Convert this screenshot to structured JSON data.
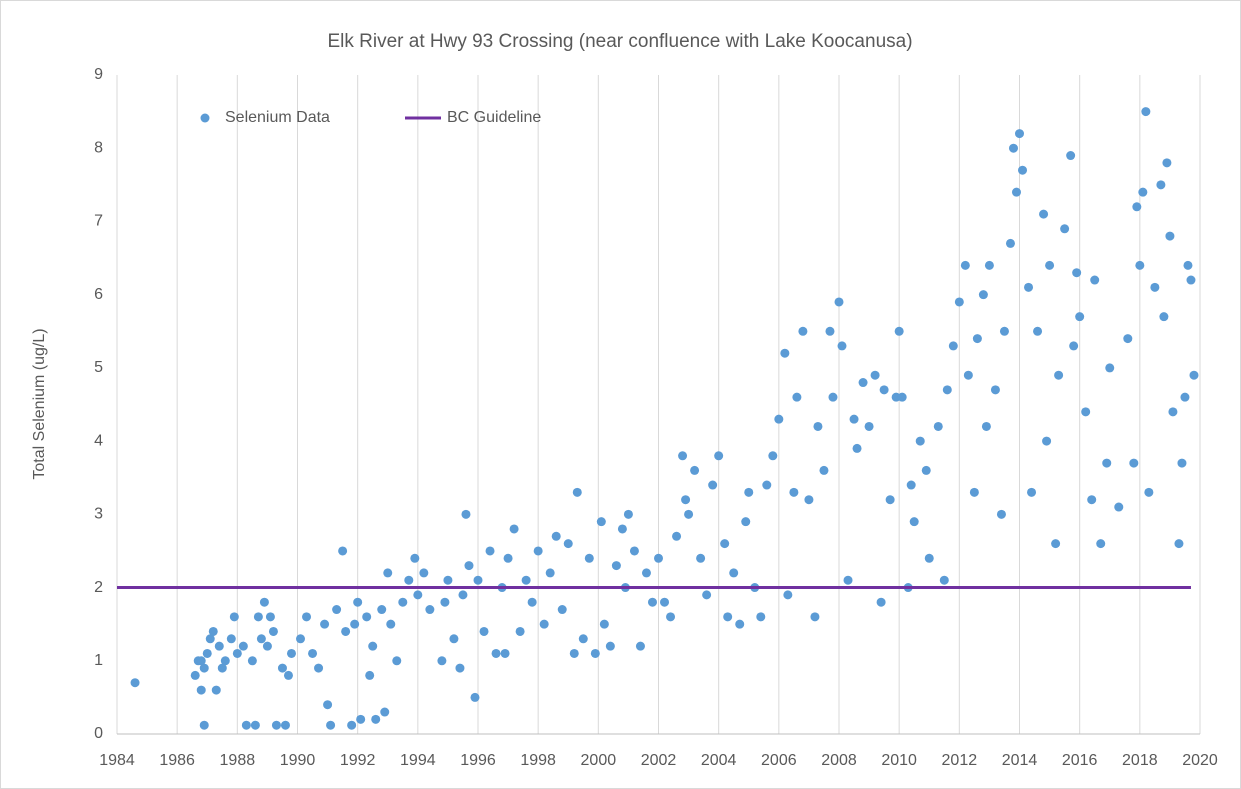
{
  "chart_data": {
    "type": "scatter",
    "title": "Elk River at Hwy 93 Crossing (near confluence with Lake Koocanusa)",
    "y_label": "Total Selenium (ug/L)",
    "xlim": [
      1984,
      2020
    ],
    "xticks": [
      1984,
      1986,
      1988,
      1990,
      1992,
      1994,
      1996,
      1998,
      2000,
      2002,
      2004,
      2006,
      2008,
      2010,
      2012,
      2014,
      2016,
      2018,
      2020
    ],
    "ylim": [
      0,
      9
    ],
    "yticks": [
      0,
      1,
      2,
      3,
      4,
      5,
      6,
      7,
      8,
      9
    ],
    "grid": "x",
    "legend": "upper left",
    "series": [
      {
        "name": "Selenium Data",
        "color": "#5b9bd5",
        "type": "scatter",
        "x": [
          1984.6,
          1986.6,
          1986.7,
          1986.8,
          1986.9,
          1986.9,
          1986.8,
          1987.0,
          1987.1,
          1987.2,
          1987.3,
          1987.4,
          1987.5,
          1987.6,
          1987.8,
          1987.9,
          1988.0,
          1988.2,
          1988.3,
          1988.5,
          1988.6,
          1988.7,
          1988.8,
          1988.9,
          1989.0,
          1989.1,
          1989.2,
          1989.3,
          1989.5,
          1989.6,
          1989.7,
          1989.8,
          1990.1,
          1990.3,
          1990.5,
          1990.7,
          1990.9,
          1991.0,
          1991.1,
          1991.3,
          1991.5,
          1991.6,
          1991.8,
          1991.9,
          1992.0,
          1992.1,
          1992.3,
          1992.4,
          1992.5,
          1992.6,
          1992.8,
          1992.9,
          1993.0,
          1993.1,
          1993.3,
          1993.5,
          1993.7,
          1993.9,
          1994.0,
          1994.2,
          1994.4,
          1994.8,
          1994.9,
          1995.0,
          1995.2,
          1995.4,
          1995.5,
          1995.6,
          1995.7,
          1995.9,
          1996.0,
          1996.2,
          1996.4,
          1996.6,
          1996.8,
          1996.9,
          1997.0,
          1997.2,
          1997.4,
          1997.6,
          1997.8,
          1998.0,
          1998.2,
          1998.4,
          1998.6,
          1998.8,
          1999.0,
          1999.2,
          1999.3,
          1999.5,
          1999.7,
          1999.9,
          2000.1,
          2000.2,
          2000.4,
          2000.6,
          2000.8,
          2000.9,
          2001.0,
          2001.2,
          2001.4,
          2001.6,
          2001.8,
          2002.0,
          2002.2,
          2002.4,
          2002.6,
          2002.8,
          2002.9,
          2003.0,
          2003.2,
          2003.4,
          2003.6,
          2003.8,
          2004.0,
          2004.2,
          2004.3,
          2004.5,
          2004.7,
          2004.9,
          2005.0,
          2005.2,
          2005.4,
          2005.6,
          2005.8,
          2006.0,
          2006.2,
          2006.3,
          2006.5,
          2006.6,
          2006.8,
          2007.0,
          2007.2,
          2007.3,
          2007.5,
          2007.7,
          2007.8,
          2008.0,
          2008.1,
          2008.3,
          2008.5,
          2008.6,
          2008.8,
          2009.0,
          2009.2,
          2009.4,
          2009.5,
          2009.7,
          2009.9,
          2010.0,
          2010.1,
          2010.3,
          2010.4,
          2010.5,
          2010.7,
          2010.9,
          2011.0,
          2011.3,
          2011.5,
          2011.6,
          2011.8,
          2012.0,
          2012.2,
          2012.3,
          2012.5,
          2012.6,
          2012.8,
          2012.9,
          2013.0,
          2013.2,
          2013.4,
          2013.5,
          2013.7,
          2013.8,
          2013.9,
          2014.0,
          2014.1,
          2014.3,
          2014.4,
          2014.6,
          2014.8,
          2014.9,
          2015.0,
          2015.2,
          2015.3,
          2015.5,
          2015.7,
          2015.8,
          2015.9,
          2016.0,
          2016.2,
          2016.4,
          2016.5,
          2016.7,
          2016.9,
          2017.0,
          2017.3,
          2017.6,
          2017.8,
          2017.9,
          2018.0,
          2018.1,
          2018.2,
          2018.3,
          2018.5,
          2018.7,
          2018.8,
          2018.9,
          2019.0,
          2019.1,
          2019.3,
          2019.4,
          2019.5,
          2019.6,
          2019.7,
          2019.8
        ],
        "values": [
          0.7,
          0.8,
          1.0,
          0.6,
          0.12,
          0.9,
          1.0,
          1.1,
          1.3,
          1.4,
          0.6,
          1.2,
          0.9,
          1.0,
          1.3,
          1.6,
          1.1,
          1.2,
          0.12,
          1.0,
          0.12,
          1.6,
          1.3,
          1.8,
          1.2,
          1.6,
          1.4,
          0.12,
          0.9,
          0.12,
          0.8,
          1.1,
          1.3,
          1.6,
          1.1,
          0.9,
          1.5,
          0.4,
          0.12,
          1.7,
          2.5,
          1.4,
          0.12,
          1.5,
          1.8,
          0.2,
          1.6,
          0.8,
          1.2,
          0.2,
          1.7,
          0.3,
          2.2,
          1.5,
          1.0,
          1.8,
          2.1,
          2.4,
          1.9,
          2.2,
          1.7,
          1.0,
          1.8,
          2.1,
          1.3,
          0.9,
          1.9,
          3.0,
          2.3,
          0.5,
          2.1,
          1.4,
          2.5,
          1.1,
          2.0,
          1.1,
          2.4,
          2.8,
          1.4,
          2.1,
          1.8,
          2.5,
          1.5,
          2.2,
          2.7,
          1.7,
          2.6,
          1.1,
          3.3,
          1.3,
          2.4,
          1.1,
          2.9,
          1.5,
          1.2,
          2.3,
          2.8,
          2.0,
          3.0,
          2.5,
          1.2,
          2.2,
          1.8,
          2.4,
          1.8,
          1.6,
          2.7,
          3.8,
          3.2,
          3.0,
          3.6,
          2.4,
          1.9,
          3.4,
          3.8,
          2.6,
          1.6,
          2.2,
          1.5,
          2.9,
          3.3,
          2.0,
          1.6,
          3.4,
          3.8,
          4.3,
          5.2,
          1.9,
          3.3,
          4.6,
          5.5,
          3.2,
          1.6,
          4.2,
          3.6,
          5.5,
          4.6,
          5.9,
          5.3,
          2.1,
          4.3,
          3.9,
          4.8,
          4.2,
          4.9,
          1.8,
          4.7,
          3.2,
          4.6,
          5.5,
          4.6,
          2.0,
          3.4,
          2.9,
          4.0,
          3.6,
          2.4,
          4.2,
          2.1,
          4.7,
          5.3,
          5.9,
          6.4,
          4.9,
          3.3,
          5.4,
          6.0,
          4.2,
          6.4,
          4.7,
          3.0,
          5.5,
          6.7,
          8.0,
          7.4,
          8.2,
          7.7,
          6.1,
          3.3,
          5.5,
          7.1,
          4.0,
          6.4,
          2.6,
          4.9,
          6.9,
          7.9,
          5.3,
          6.3,
          5.7,
          4.4,
          3.2,
          6.2,
          2.6,
          3.7,
          5.0,
          3.1,
          5.4,
          3.7,
          7.2,
          6.4,
          7.4,
          8.5,
          3.3,
          6.1,
          7.5,
          5.7,
          7.8,
          6.8,
          4.4,
          2.6,
          3.7,
          4.6,
          6.4,
          6.2,
          4.9
        ]
      },
      {
        "name": "BC Guideline",
        "color": "#7030a0",
        "type": "line",
        "x": [
          1984,
          2019.7
        ],
        "values": [
          2,
          2
        ]
      }
    ]
  }
}
